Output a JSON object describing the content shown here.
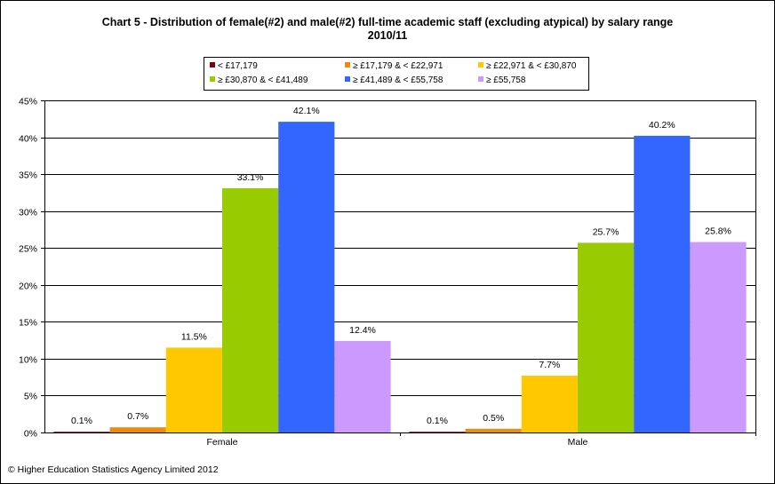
{
  "title_line1": "Chart 5 - Distribution  of female(#2) and male(#2) full-time academic staff (excluding atypical) by salary range",
  "title_line2": "2010/11",
  "footer": "© Higher Education Statistics Agency Limited 2012",
  "chart_data": {
    "type": "bar",
    "categories": [
      "Female",
      "Male"
    ],
    "ylim": [
      0,
      45
    ],
    "ytick_step": 5,
    "ytick_suffix": "%",
    "grid": true,
    "legend_position": "top",
    "series": [
      {
        "name": "< £17,179",
        "color": "#7b0010",
        "values": [
          0.1,
          0.1
        ],
        "labels": [
          "0.1%",
          "0.1%"
        ]
      },
      {
        "name": "≥ £17,179 & < £22,971",
        "color": "#f0890e",
        "values": [
          0.7,
          0.5
        ],
        "labels": [
          "0.7%",
          "0.5%"
        ]
      },
      {
        "name": "≥ £22,971 & < £30,870",
        "color": "#ffc800",
        "values": [
          11.5,
          7.7
        ],
        "labels": [
          "11.5%",
          "7.7%"
        ]
      },
      {
        "name": "≥ £30,870 & < £41,489",
        "color": "#99cc00",
        "values": [
          33.1,
          25.7
        ],
        "labels": [
          "33.1%",
          "25.7%"
        ]
      },
      {
        "name": "≥ £41,489 & < £55,758",
        "color": "#3366ff",
        "values": [
          42.1,
          40.2
        ],
        "labels": [
          "42.1%",
          "40.2%"
        ]
      },
      {
        "name": "≥ £55,758",
        "color": "#cc99ff",
        "values": [
          12.4,
          25.8
        ],
        "labels": [
          "12.4%",
          "25.8%"
        ]
      }
    ]
  }
}
